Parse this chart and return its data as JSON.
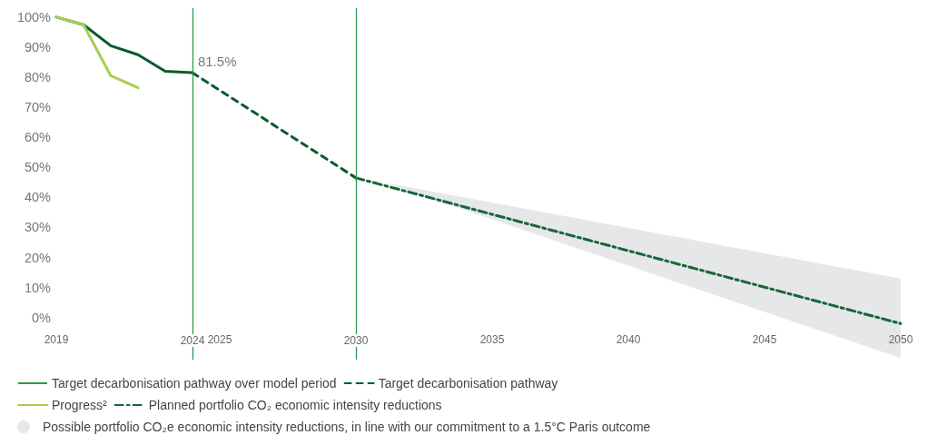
{
  "chart_data": {
    "type": "line",
    "xlim": [
      2019,
      2050
    ],
    "xticks": [
      2019,
      2024,
      2025,
      2030,
      2035,
      2040,
      2045,
      2050
    ],
    "ylim": [
      -14,
      103
    ],
    "yticks": [
      {
        "value": 0,
        "label": "0%"
      },
      {
        "value": 10,
        "label": "10%"
      },
      {
        "value": 20,
        "label": "20%"
      },
      {
        "value": 30,
        "label": "30%"
      },
      {
        "value": 40,
        "label": "40%"
      },
      {
        "value": 50,
        "label": "50%"
      },
      {
        "value": 60,
        "label": "60%"
      },
      {
        "value": 70,
        "label": "70%"
      },
      {
        "value": 80,
        "label": "80%"
      },
      {
        "value": 90,
        "label": "90%"
      },
      {
        "value": 100,
        "label": "100%"
      }
    ],
    "grid": false,
    "legend": "bottom",
    "marker": "none",
    "ref_lines": [
      {
        "axis": "x",
        "value": 2024,
        "label": "Target decarbonisation pathway over model period",
        "color": "#2a9a4c"
      },
      {
        "axis": "x",
        "value": 2030,
        "color": "#2a9a4c"
      }
    ],
    "series": [
      {
        "color": "#0b5a2c",
        "x": [
          2019,
          2020,
          2021,
          2022,
          2023,
          2024
        ],
        "values": [
          100,
          97.5,
          90.5,
          87.5,
          82,
          81.5
        ],
        "value_labels": [
          null,
          null,
          null,
          null,
          null,
          "81.5%"
        ],
        "line_style": "solid"
      },
      {
        "name": "Target decarbonisation pathway",
        "color": "#0b5a2c",
        "x": [
          2024,
          2030
        ],
        "values": [
          81.5,
          46.5
        ],
        "line_style": "dashed"
      },
      {
        "name": "Progress²",
        "color": "#a6cf4f",
        "x": [
          2019,
          2020,
          2021,
          2022
        ],
        "values": [
          100,
          97.5,
          80.5,
          76.5
        ],
        "line_style": "solid"
      },
      {
        "name": "Planned portfolio CO₂ economic intensity reductions",
        "color": "#17663a",
        "x": [
          2030,
          2050
        ],
        "values": [
          46.5,
          -2
        ],
        "line_style": "dashdot"
      },
      {
        "name": "Possible portfolio CO₂e economic intensity reductions, in line with our commitment to a 1.5°C Paris outcome",
        "type": "area",
        "color": "#e6e7e8",
        "x": [
          2031,
          2050
        ],
        "values": [
          null,
          null
        ],
        "lower": [
          45,
          -13.5
        ],
        "upper": [
          45,
          13
        ]
      }
    ]
  }
}
